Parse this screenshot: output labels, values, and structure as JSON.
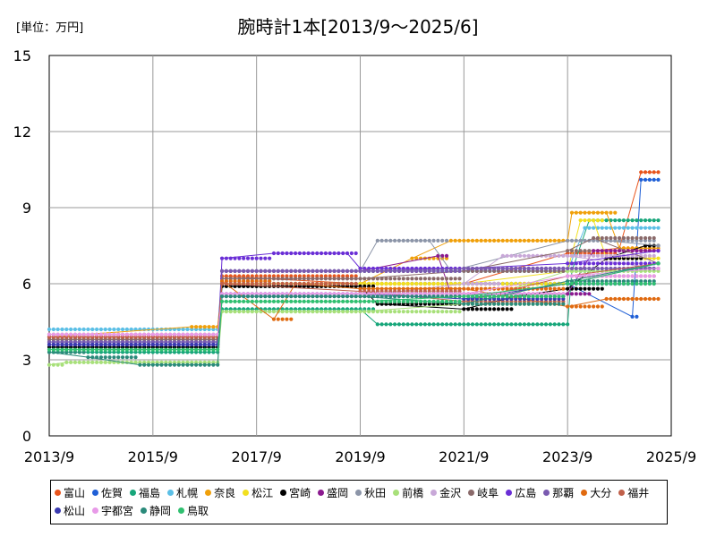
{
  "chart_data": {
    "type": "line",
    "title": "腕時計1本[2013/9～2025/6]",
    "unit_label": "[単位：万円]",
    "xlabel": "",
    "ylabel": "",
    "x_range": [
      "2013-09",
      "2025-09"
    ],
    "xticks": [
      "2013/9",
      "2015/9",
      "2017/9",
      "2019/9",
      "2021/9",
      "2023/9",
      "2025/9"
    ],
    "ylim": [
      0,
      15
    ],
    "yticks": [
      "0",
      "3",
      "6",
      "9",
      "12",
      "15"
    ],
    "grid": true,
    "legend_position": "bottom",
    "series": [
      {
        "name": "富山",
        "color": "#e8541c",
        "points": [
          [
            "2013-09",
            3.9
          ],
          [
            "2016-12",
            3.9
          ],
          [
            "2017-01",
            6.3
          ],
          [
            "2019-09",
            6.0
          ],
          [
            "2021-09",
            6.0
          ],
          [
            "2023-09",
            7.2
          ],
          [
            "2024-09",
            7.4
          ],
          [
            "2025-02",
            10.4
          ],
          [
            "2025-06",
            10.4
          ]
        ]
      },
      {
        "name": "佐賀",
        "color": "#1f5fd6",
        "points": [
          [
            "2013-09",
            3.7
          ],
          [
            "2016-12",
            3.7
          ],
          [
            "2017-01",
            6.0
          ],
          [
            "2019-09",
            6.0
          ],
          [
            "2022-09",
            6.0
          ],
          [
            "2023-09",
            6.0
          ],
          [
            "2024-12",
            4.7
          ],
          [
            "2025-02",
            10.1
          ],
          [
            "2025-06",
            10.1
          ]
        ]
      },
      {
        "name": "福島",
        "color": "#17a67a",
        "points": [
          [
            "2013-09",
            3.3
          ],
          [
            "2016-12",
            3.3
          ],
          [
            "2017-01",
            5.0
          ],
          [
            "2019-09",
            5.0
          ],
          [
            "2020-01",
            4.4
          ],
          [
            "2023-09",
            4.4
          ],
          [
            "2023-10",
            6.5
          ],
          [
            "2024-02",
            8.5
          ],
          [
            "2025-06",
            8.5
          ]
        ]
      },
      {
        "name": "札幌",
        "color": "#5bbfe6",
        "points": [
          [
            "2013-09",
            4.2
          ],
          [
            "2016-12",
            4.2
          ],
          [
            "2017-01",
            6.5
          ],
          [
            "2020-09",
            6.5
          ],
          [
            "2023-09",
            6.5
          ],
          [
            "2024-01",
            8.2
          ],
          [
            "2025-06",
            8.2
          ]
        ]
      },
      {
        "name": "奈良",
        "color": "#f0a00a",
        "points": [
          [
            "2013-09",
            3.9
          ],
          [
            "2016-06",
            4.3
          ],
          [
            "2016-12",
            4.3
          ],
          [
            "2017-01",
            6.0
          ],
          [
            "2019-09",
            6.0
          ],
          [
            "2020-09",
            7.0
          ],
          [
            "2021-06",
            7.7
          ],
          [
            "2023-09",
            7.7
          ],
          [
            "2023-10",
            8.8
          ],
          [
            "2024-06",
            8.8
          ],
          [
            "2024-09",
            7.4
          ],
          [
            "2025-06",
            7.4
          ]
        ]
      },
      {
        "name": "松江",
        "color": "#f2e020",
        "points": [
          [
            "2013-09",
            4.0
          ],
          [
            "2016-12",
            4.0
          ],
          [
            "2017-01",
            6.0
          ],
          [
            "2021-09",
            6.0
          ],
          [
            "2023-09",
            6.5
          ],
          [
            "2023-12",
            8.5
          ],
          [
            "2024-03",
            8.5
          ],
          [
            "2024-06",
            7.0
          ],
          [
            "2025-06",
            7.0
          ]
        ]
      },
      {
        "name": "宮崎",
        "color": "#000000",
        "points": [
          [
            "2013-09",
            3.5
          ],
          [
            "2016-12",
            3.5
          ],
          [
            "2017-01",
            5.9
          ],
          [
            "2019-09",
            5.9
          ],
          [
            "2020-01",
            5.2
          ],
          [
            "2021-09",
            5.0
          ],
          [
            "2022-09",
            5.5
          ],
          [
            "2023-09",
            5.8
          ],
          [
            "2024-06",
            7.0
          ],
          [
            "2025-03",
            7.5
          ],
          [
            "2025-06",
            7.5
          ]
        ]
      },
      {
        "name": "盛岡",
        "color": "#8b1a8f",
        "points": [
          [
            "2013-09",
            3.9
          ],
          [
            "2016-12",
            3.9
          ],
          [
            "2017-01",
            6.5
          ],
          [
            "2019-09",
            6.5
          ],
          [
            "2021-03",
            7.1
          ],
          [
            "2021-06",
            5.6
          ],
          [
            "2023-09",
            5.6
          ],
          [
            "2024-03",
            7.3
          ],
          [
            "2025-06",
            7.3
          ]
        ]
      },
      {
        "name": "秋田",
        "color": "#8c95a8",
        "points": [
          [
            "2013-09",
            3.8
          ],
          [
            "2016-12",
            3.8
          ],
          [
            "2017-01",
            6.5
          ],
          [
            "2019-09",
            6.5
          ],
          [
            "2020-01",
            7.7
          ],
          [
            "2021-01",
            7.7
          ],
          [
            "2021-06",
            6.5
          ],
          [
            "2023-09",
            7.7
          ],
          [
            "2024-06",
            7.7
          ],
          [
            "2025-06",
            7.5
          ]
        ]
      },
      {
        "name": "前橋",
        "color": "#a8e07a",
        "points": [
          [
            "2013-09",
            2.8
          ],
          [
            "2014-01",
            2.9
          ],
          [
            "2016-12",
            2.9
          ],
          [
            "2017-01",
            4.9
          ],
          [
            "2019-09",
            4.9
          ],
          [
            "2021-09",
            5.2
          ],
          [
            "2023-09",
            6.5
          ],
          [
            "2025-06",
            6.5
          ]
        ]
      },
      {
        "name": "金沢",
        "color": "#c8a8d8",
        "points": [
          [
            "2013-09",
            4.0
          ],
          [
            "2016-12",
            4.0
          ],
          [
            "2017-01",
            5.5
          ],
          [
            "2019-09",
            5.5
          ],
          [
            "2021-09",
            6.0
          ],
          [
            "2022-06",
            7.1
          ],
          [
            "2023-09",
            7.1
          ],
          [
            "2025-06",
            6.6
          ]
        ]
      },
      {
        "name": "岐阜",
        "color": "#8a6a6a",
        "points": [
          [
            "2013-09",
            3.8
          ],
          [
            "2016-12",
            3.8
          ],
          [
            "2017-01",
            6.2
          ],
          [
            "2019-09",
            6.2
          ],
          [
            "2021-09",
            6.5
          ],
          [
            "2023-09",
            7.3
          ],
          [
            "2024-03",
            7.8
          ],
          [
            "2025-06",
            6.8
          ]
        ]
      },
      {
        "name": "広島",
        "color": "#6a2ed6",
        "points": [
          [
            "2013-09",
            3.6
          ],
          [
            "2016-12",
            3.6
          ],
          [
            "2017-01",
            7.0
          ],
          [
            "2018-01",
            7.2
          ],
          [
            "2019-06",
            7.2
          ],
          [
            "2019-09",
            6.6
          ],
          [
            "2021-09",
            6.6
          ],
          [
            "2023-09",
            6.8
          ],
          [
            "2025-06",
            7.3
          ]
        ]
      },
      {
        "name": "那覇",
        "color": "#7a5ab0",
        "points": [
          [
            "2013-09",
            3.7
          ],
          [
            "2016-12",
            3.7
          ],
          [
            "2017-01",
            6.5
          ],
          [
            "2019-09",
            6.5
          ],
          [
            "2021-09",
            6.6
          ],
          [
            "2023-09",
            6.6
          ],
          [
            "2025-06",
            6.6
          ]
        ]
      },
      {
        "name": "大分",
        "color": "#e06a10",
        "points": [
          [
            "2013-09",
            3.9
          ],
          [
            "2016-12",
            3.9
          ],
          [
            "2017-01",
            6.1
          ],
          [
            "2018-01",
            4.6
          ],
          [
            "2018-06",
            6.0
          ],
          [
            "2019-09",
            5.8
          ],
          [
            "2021-09",
            5.8
          ],
          [
            "2023-09",
            5.1
          ],
          [
            "2024-06",
            5.4
          ],
          [
            "2025-06",
            5.4
          ]
        ]
      },
      {
        "name": "福井",
        "color": "#c0604a",
        "points": [
          [
            "2013-09",
            3.9
          ],
          [
            "2016-12",
            3.9
          ],
          [
            "2017-01",
            6.0
          ],
          [
            "2019-09",
            5.7
          ],
          [
            "2021-09",
            5.3
          ],
          [
            "2023-09",
            6.3
          ],
          [
            "2025-06",
            6.8
          ]
        ]
      },
      {
        "name": "松山",
        "color": "#3a3ab0",
        "points": [
          [
            "2013-09",
            3.6
          ],
          [
            "2016-12",
            3.6
          ],
          [
            "2017-01",
            5.6
          ],
          [
            "2019-09",
            5.6
          ],
          [
            "2021-09",
            5.4
          ],
          [
            "2023-09",
            6.0
          ],
          [
            "2025-06",
            6.8
          ]
        ]
      },
      {
        "name": "宇都宮",
        "color": "#e89ae8",
        "points": [
          [
            "2013-09",
            4.0
          ],
          [
            "2016-12",
            4.0
          ],
          [
            "2017-01",
            5.6
          ],
          [
            "2019-09",
            5.6
          ],
          [
            "2021-09",
            5.6
          ],
          [
            "2023-09",
            6.3
          ],
          [
            "2025-06",
            6.6
          ]
        ]
      },
      {
        "name": "静岡",
        "color": "#2a8a7a",
        "points": [
          [
            "2013-09",
            3.3
          ],
          [
            "2014-06",
            3.1
          ],
          [
            "2015-06",
            2.8
          ],
          [
            "2016-12",
            2.8
          ],
          [
            "2017-01",
            5.5
          ],
          [
            "2019-09",
            5.5
          ],
          [
            "2021-09",
            5.2
          ],
          [
            "2023-09",
            6.1
          ],
          [
            "2025-06",
            6.8
          ]
        ]
      },
      {
        "name": "鳥取",
        "color": "#30c070",
        "points": [
          [
            "2013-09",
            3.4
          ],
          [
            "2016-12",
            3.4
          ],
          [
            "2017-01",
            5.3
          ],
          [
            "2019-09",
            5.3
          ],
          [
            "2021-09",
            5.5
          ],
          [
            "2023-09",
            6.0
          ],
          [
            "2025-06",
            6.8
          ]
        ]
      }
    ]
  }
}
